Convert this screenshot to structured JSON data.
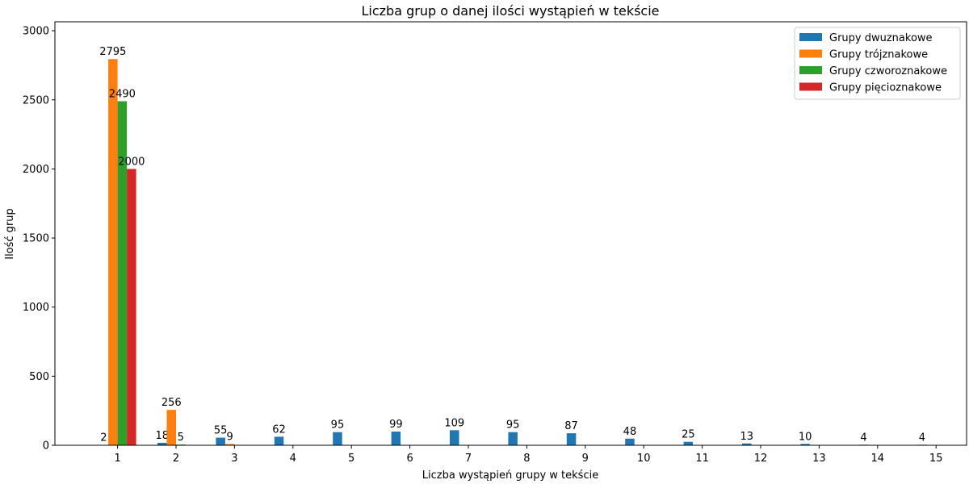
{
  "chart_data": {
    "type": "bar",
    "title": "Liczba grup o danej ilości wystąpień w tekście",
    "xlabel": "Liczba wystąpień grupy w tekście",
    "ylabel": "Ilość grup",
    "categories": [
      "1",
      "2",
      "3",
      "4",
      "5",
      "6",
      "7",
      "8",
      "9",
      "10",
      "11",
      "12",
      "13",
      "14",
      "15"
    ],
    "ylim": [
      0,
      3065
    ],
    "yticks": [
      "0",
      "500",
      "1000",
      "1500",
      "2000",
      "2500",
      "3000"
    ],
    "legend_position": "top-right",
    "grid": false,
    "series": [
      {
        "name": "Grupy dwuznakowe",
        "color": "#1f77b4",
        "values": [
          2,
          18,
          55,
          62,
          95,
          99,
          109,
          95,
          87,
          48,
          25,
          13,
          10,
          4,
          4
        ]
      },
      {
        "name": "Grupy trójznakowe",
        "color": "#ff7f0e",
        "values": [
          2795,
          256,
          9,
          null,
          null,
          null,
          null,
          null,
          null,
          null,
          null,
          null,
          null,
          null,
          null
        ]
      },
      {
        "name": "Grupy czworoznakowe",
        "color": "#2ca02c",
        "values": [
          2490,
          5,
          null,
          null,
          null,
          null,
          null,
          null,
          null,
          null,
          null,
          null,
          null,
          null,
          null
        ]
      },
      {
        "name": "Grupy pięcioznakowe",
        "color": "#d62728",
        "values": [
          2000,
          null,
          null,
          null,
          null,
          null,
          null,
          null,
          null,
          null,
          null,
          null,
          null,
          null,
          null
        ]
      }
    ]
  }
}
